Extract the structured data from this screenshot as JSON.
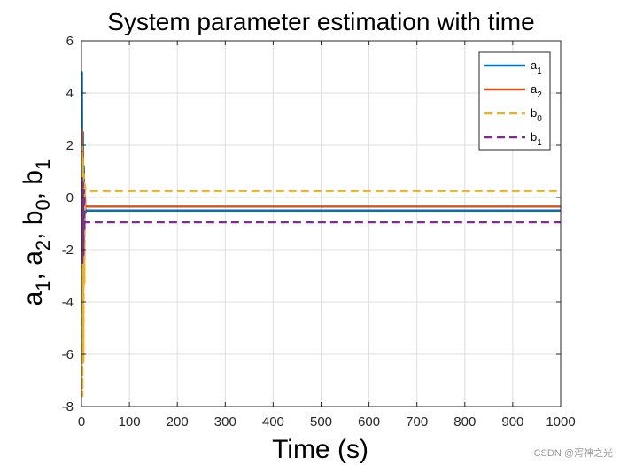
{
  "chart_data": {
    "type": "line",
    "title": "System parameter estimation with time",
    "xlabel": "Time (s)",
    "ylabel": "a1, a2, b0, b1",
    "xlim": [
      0,
      1000
    ],
    "ylim": [
      -8,
      6
    ],
    "xticks": [
      0,
      100,
      200,
      300,
      400,
      500,
      600,
      700,
      800,
      900,
      1000
    ],
    "yticks": [
      -8,
      -6,
      -4,
      -2,
      0,
      2,
      4,
      6
    ],
    "grid": true,
    "legend_position": "top-right",
    "series": [
      {
        "name": "a1",
        "legend_main": "a",
        "legend_sub": "1",
        "color": "#0072BD",
        "style": "solid",
        "x": [
          0,
          1,
          2,
          3,
          4,
          5,
          6,
          7,
          8,
          10,
          1000
        ],
        "y": [
          0,
          4.8,
          -4.0,
          2.5,
          -3.2,
          1.2,
          -1.5,
          0.1,
          -0.6,
          -0.5,
          -0.5
        ]
      },
      {
        "name": "a2",
        "legend_main": "a",
        "legend_sub": "2",
        "color": "#D95319",
        "style": "solid",
        "x": [
          0,
          1,
          2,
          3,
          4,
          5,
          6,
          7,
          8,
          10,
          1000
        ],
        "y": [
          0,
          2.6,
          -2.4,
          1.8,
          -1.8,
          0.6,
          -0.8,
          0.0,
          -0.35,
          -0.35,
          -0.35
        ]
      },
      {
        "name": "b0",
        "legend_main": "b",
        "legend_sub": "0",
        "color": "#EDB120",
        "style": "dashed",
        "x": [
          0,
          1,
          2,
          3,
          4,
          5,
          6,
          7,
          8,
          10,
          1000
        ],
        "y": [
          0,
          2.0,
          -7.6,
          1.5,
          -6.3,
          0.9,
          -3.3,
          0.5,
          0.25,
          0.25,
          0.25
        ]
      },
      {
        "name": "b1",
        "legend_main": "b",
        "legend_sub": "1",
        "color": "#7E2F8E",
        "style": "dashed",
        "x": [
          0,
          1,
          2,
          3,
          4,
          5,
          6,
          7,
          8,
          10,
          1000
        ],
        "y": [
          0,
          0.8,
          -2.5,
          0.6,
          -2.2,
          0.3,
          -1.2,
          -0.9,
          -0.95,
          -0.95,
          -0.95
        ]
      }
    ]
  },
  "watermark": "CSDN @泻神之光"
}
